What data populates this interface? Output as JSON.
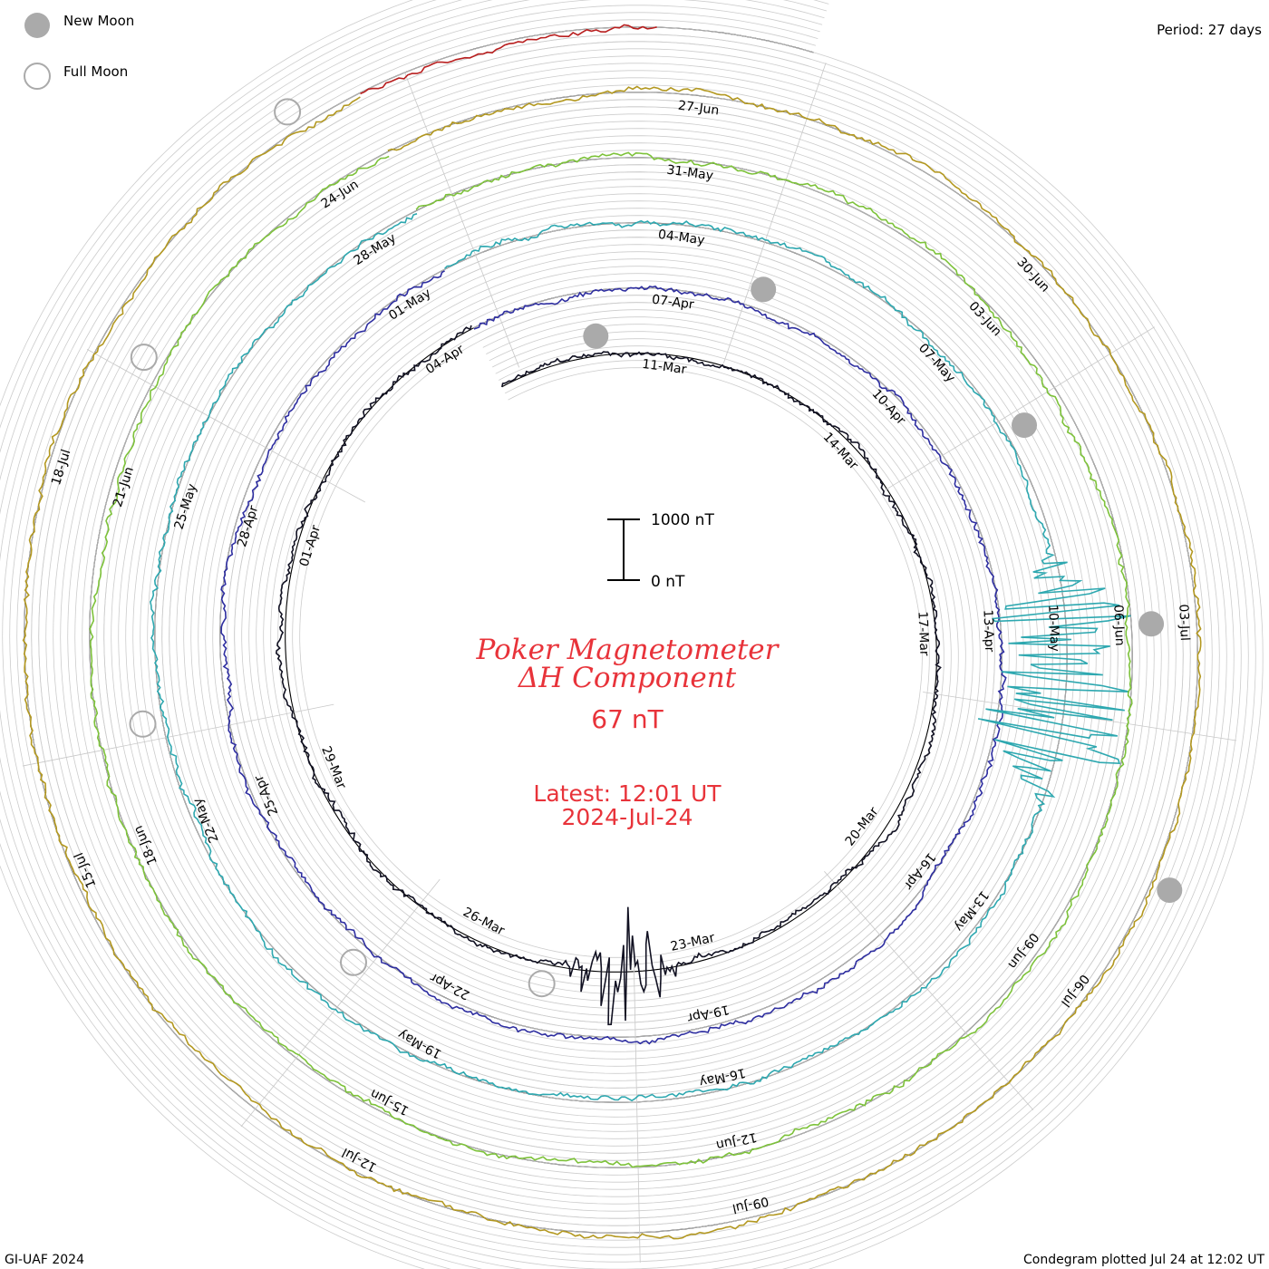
{
  "legend": {
    "new_moon_label": "New Moon",
    "full_moon_label": "Full Moon"
  },
  "period_label": "Period: 27 days",
  "footer": {
    "left": "GI-UAF 2024",
    "right": "Condegram plotted Jul 24 at 12:02 UT"
  },
  "center": {
    "title_line1": "Poker Magnetometer",
    "title_line2": "ΔH Component",
    "current_value": "67 nT",
    "latest_line1": "Latest: 12:01 UT",
    "latest_line2": "2024-Jul-24",
    "scale_top": "1000 nT",
    "scale_bottom": "0 nT",
    "title_color": "#e8333a"
  },
  "chart_data": {
    "type": "line",
    "title": "Poker Magnetometer ΔH Component",
    "subtitle": "67 nT",
    "layout": "spiral condegram",
    "period_days": 27,
    "x_unit": "date (2024)",
    "y_unit": "nT",
    "scale_bar_nT": [
      0,
      1000
    ],
    "turns": [
      {
        "turn": 1,
        "start": "2024-03-09",
        "color": "#111122",
        "date_ticks": [
          "11-Mar",
          "14-Mar",
          "17-Mar",
          "20-Mar",
          "23-Mar",
          "26-Mar",
          "29-Mar",
          "01-Apr"
        ]
      },
      {
        "turn": 2,
        "start": "2024-04-05",
        "color": "#2e2ea0",
        "date_ticks": [
          "04-Apr",
          "07-Apr",
          "10-Apr",
          "13-Apr",
          "16-Apr",
          "19-Apr",
          "22-Apr",
          "25-Apr",
          "28-Apr"
        ]
      },
      {
        "turn": 3,
        "start": "2024-05-02",
        "color": "#2ea8b0",
        "date_ticks": [
          "01-May",
          "04-May",
          "07-May",
          "10-May",
          "13-May",
          "16-May",
          "19-May",
          "22-May",
          "25-May"
        ]
      },
      {
        "turn": 4,
        "start": "2024-05-29",
        "color": "#7dc23a",
        "date_ticks": [
          "28-May",
          "31-May",
          "03-Jun",
          "06-Jun",
          "09-Jun",
          "12-Jun",
          "15-Jun",
          "18-Jun",
          "21-Jun"
        ]
      },
      {
        "turn": 5,
        "start": "2024-06-25",
        "color": "#b39820",
        "date_ticks": [
          "24-Jun",
          "27-Jun",
          "30-Jun",
          "03-Jul",
          "06-Jul",
          "09-Jul",
          "12-Jul",
          "15-Jul",
          "18-Jul"
        ]
      },
      {
        "turn": 6,
        "start": "2024-07-22",
        "color": "#b81e1e",
        "date_ticks": []
      }
    ],
    "moon_phases": {
      "new_moon": [
        "2024-03-10",
        "2024-04-08",
        "2024-05-08",
        "2024-06-06",
        "2024-07-05"
      ],
      "full_moon": [
        "2024-03-25",
        "2024-04-23",
        "2024-05-23",
        "2024-06-22",
        "2024-07-21"
      ]
    },
    "notable_disturbances": [
      {
        "date": "2024-03-24",
        "approx_peak_nT": 1200
      },
      {
        "date": "2024-05-10",
        "approx_peak_nT": 1400
      },
      {
        "date": "2024-05-11",
        "approx_peak_nT": 1600
      }
    ]
  }
}
